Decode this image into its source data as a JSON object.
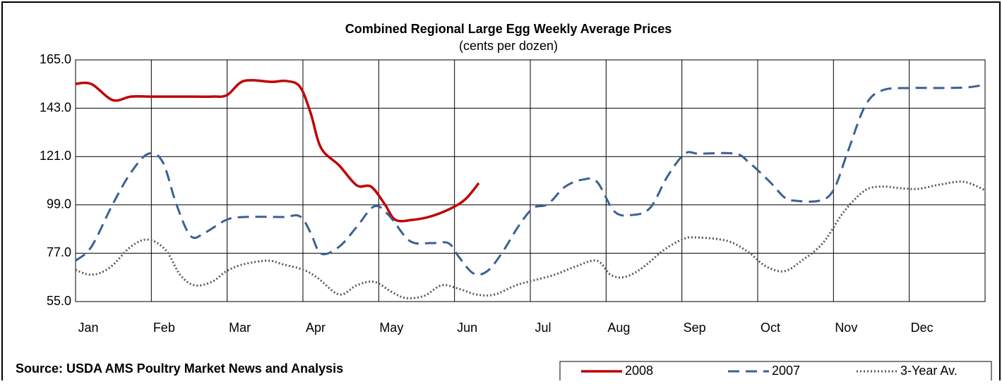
{
  "chart_data": {
    "type": "line",
    "title": "Combined Regional Large Egg Weekly Average Prices",
    "subtitle": "(cents per dozen)",
    "source": "Source: USDA AMS Poultry Market News and Analysis",
    "xlim": [
      0,
      12
    ],
    "xticks": [
      {
        "value": 0,
        "label": "Jan"
      },
      {
        "value": 1,
        "label": "Feb"
      },
      {
        "value": 2,
        "label": "Mar"
      },
      {
        "value": 3,
        "label": "Apr"
      },
      {
        "value": 4,
        "label": "May"
      },
      {
        "value": 5,
        "label": "Jun"
      },
      {
        "value": 6,
        "label": "Jul"
      },
      {
        "value": 7,
        "label": "Aug"
      },
      {
        "value": 8,
        "label": "Sep"
      },
      {
        "value": 9,
        "label": "Oct"
      },
      {
        "value": 10,
        "label": "Nov"
      },
      {
        "value": 11,
        "label": "Dec"
      }
    ],
    "ylim": [
      55,
      165
    ],
    "yticks": [
      {
        "value": 55,
        "label": "55.0"
      },
      {
        "value": 77,
        "label": "77.0"
      },
      {
        "value": 99,
        "label": "99.0"
      },
      {
        "value": 121,
        "label": "121.0"
      },
      {
        "value": 143,
        "label": "143.0"
      },
      {
        "value": 165,
        "label": "165.0"
      }
    ],
    "grid": true,
    "legend": "bottom-right",
    "series": [
      {
        "name": "2008",
        "color": "#c00000",
        "line_style": "solid",
        "x": [
          0,
          0.21,
          0.49,
          0.73,
          1.01,
          1.43,
          1.8,
          2.0,
          2.22,
          2.59,
          2.78,
          2.96,
          3.1,
          3.24,
          3.48,
          3.71,
          3.9,
          4.08,
          4.22,
          4.45,
          4.69,
          4.97,
          5.15,
          5.32
        ],
        "values": [
          154.1,
          154,
          146.7,
          148.3,
          148.3,
          148.3,
          148.3,
          149,
          155.4,
          155,
          155.4,
          152.8,
          141,
          124.9,
          116.9,
          107.9,
          107.3,
          99.3,
          92.2,
          92.2,
          93.8,
          97.7,
          101.8,
          108.9
        ]
      },
      {
        "name": "2007",
        "color": "#3a6194",
        "line_style": "dashed",
        "x": [
          0,
          0.21,
          0.49,
          0.73,
          0.96,
          1.15,
          1.33,
          1.52,
          1.71,
          1.99,
          2.22,
          2.73,
          2.96,
          3.1,
          3.24,
          3.48,
          3.71,
          3.94,
          4.13,
          4.41,
          4.69,
          4.92,
          5.06,
          5.25,
          5.43,
          5.62,
          5.85,
          6.04,
          6.23,
          6.46,
          6.69,
          6.88,
          7.11,
          7.34,
          7.58,
          7.81,
          8.04,
          8.23,
          8.7,
          8.88,
          9.16,
          9.35,
          9.49,
          9.81,
          10.0,
          10.19,
          10.42,
          10.65,
          11.03,
          11.4,
          11.77,
          12.0
        ],
        "values": [
          73.6,
          80,
          99.3,
          113.7,
          122.3,
          118.5,
          99.3,
          84.8,
          86.4,
          92.2,
          93.5,
          93.5,
          93.8,
          86.4,
          76.8,
          80,
          89,
          98.3,
          94.4,
          82.6,
          81.6,
          81.6,
          75.2,
          67.8,
          68.8,
          76.8,
          89.6,
          97.6,
          99.3,
          107.3,
          110.5,
          109.5,
          96,
          94.4,
          97.6,
          112,
          122.3,
          122.3,
          122.3,
          118.5,
          109.5,
          102.5,
          100.9,
          100.9,
          105.7,
          123.3,
          144.2,
          151.2,
          152.2,
          152.2,
          152.5,
          153.8
        ]
      },
      {
        "name": "3-Year Av.",
        "color": "#595959",
        "line_style": "dotted",
        "x": [
          0,
          0.21,
          0.45,
          0.73,
          0.96,
          1.19,
          1.38,
          1.57,
          1.8,
          1.99,
          2.22,
          2.54,
          2.73,
          3.01,
          3.2,
          3.48,
          3.71,
          3.94,
          4.18,
          4.36,
          4.6,
          4.83,
          5.06,
          5.29,
          5.53,
          5.81,
          6.04,
          6.32,
          6.6,
          6.88,
          7.06,
          7.25,
          7.48,
          7.76,
          8.0,
          8.18,
          8.6,
          8.88,
          9.11,
          9.35,
          9.58,
          9.86,
          10.14,
          10.42,
          10.65,
          10.88,
          11.12,
          11.4,
          11.72,
          12.0
        ],
        "values": [
          69.4,
          67.2,
          70.4,
          80,
          83.2,
          78.4,
          67.2,
          62.4,
          64,
          68.8,
          72,
          73.6,
          72,
          69.4,
          65.6,
          58.2,
          62.4,
          64,
          59.2,
          56.6,
          57.6,
          62.4,
          60.8,
          58.2,
          58.2,
          62.4,
          64.6,
          67.2,
          71,
          73.6,
          67.2,
          66.2,
          70.4,
          78.4,
          83.2,
          84.2,
          82.6,
          77.4,
          71,
          68.8,
          73.6,
          81.6,
          96,
          105.7,
          107.3,
          106.6,
          106.3,
          108.2,
          109.5,
          105.7
        ]
      }
    ]
  }
}
